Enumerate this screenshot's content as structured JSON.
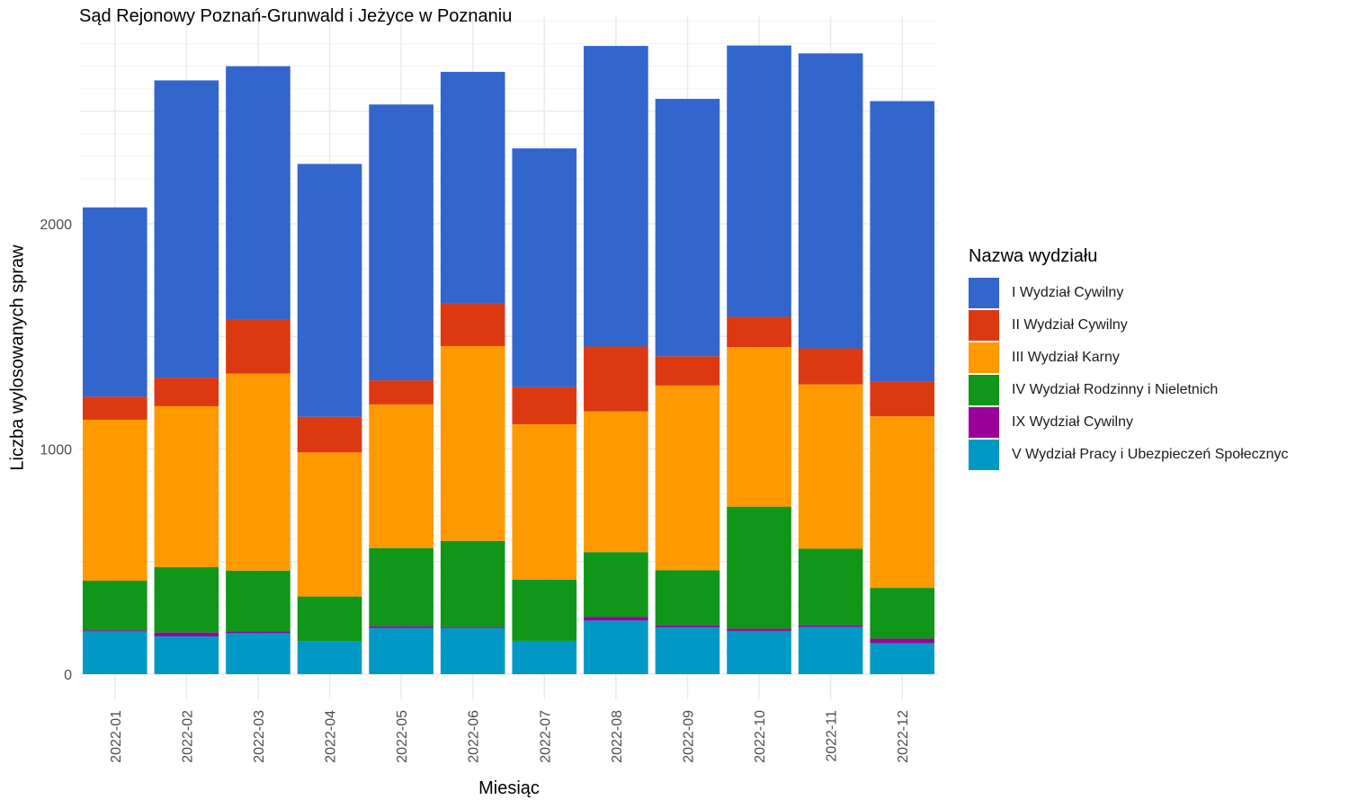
{
  "chart_data": {
    "type": "bar",
    "stacked": true,
    "title": "Sąd Rejonowy Poznań-Grunwald i Jeżyce w Poznaniu",
    "xlabel": "Miesiąc",
    "ylabel": "Liczba wylosowanych spraw",
    "legend_title": "Nazwa wydziału",
    "legend_position": "right",
    "grid": true,
    "ylim": [
      0,
      2920
    ],
    "yticks": [
      0,
      1000,
      2000
    ],
    "categories": [
      "2022-01",
      "2022-02",
      "2022-03",
      "2022-04",
      "2022-05",
      "2022-06",
      "2022-07",
      "2022-08",
      "2022-09",
      "2022-10",
      "2022-11",
      "2022-12"
    ],
    "series": [
      {
        "name": "V Wydział Pracy i Ubezpieczeń Społecznyc",
        "color": "#0099C6",
        "values": [
          190,
          168,
          182,
          145,
          205,
          205,
          148,
          238,
          208,
          192,
          210,
          138
        ]
      },
      {
        "name": "IX Wydział Cywilny",
        "color": "#990099",
        "values": [
          5,
          17,
          8,
          0,
          8,
          5,
          0,
          17,
          9,
          10,
          7,
          20
        ]
      },
      {
        "name": "IV Wydział Rodzinny i Nieletnich",
        "color": "#109618",
        "values": [
          220,
          290,
          270,
          200,
          347,
          382,
          272,
          287,
          245,
          542,
          340,
          225
        ]
      },
      {
        "name": "III Wydział Karny",
        "color": "#FF9900",
        "values": [
          715,
          715,
          875,
          640,
          638,
          865,
          690,
          625,
          820,
          708,
          730,
          762
        ]
      },
      {
        "name": "II Wydział Cywilny",
        "color": "#DC3912",
        "values": [
          103,
          127,
          240,
          158,
          107,
          188,
          165,
          288,
          130,
          135,
          160,
          153
        ]
      },
      {
        "name": "I Wydział Cywilny",
        "color": "#3366CC",
        "values": [
          840,
          1320,
          1125,
          1123,
          1225,
          1030,
          1060,
          1335,
          1143,
          1205,
          1310,
          1247
        ]
      }
    ]
  }
}
